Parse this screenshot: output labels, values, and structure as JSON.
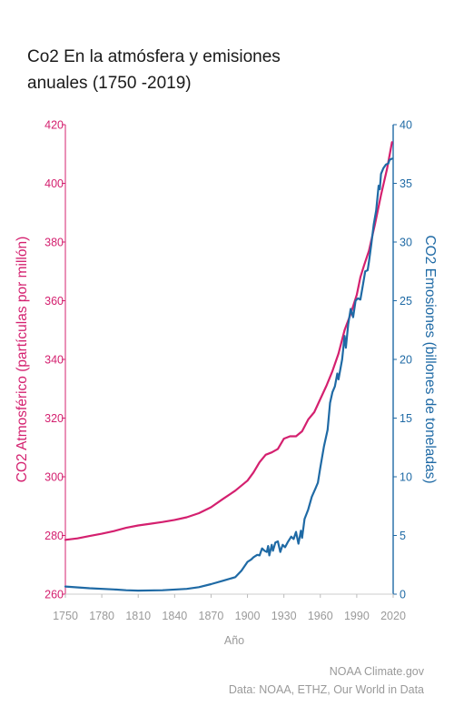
{
  "page": {
    "title_line1": "Co2 En la atmósfera y emisiones",
    "title_line2": "anuales (1750 -2019)",
    "footer_credit": "NOAA Climate.gov",
    "footer_source": "Data: NOAA, ETHZ, Our World in Data"
  },
  "chart_data": {
    "type": "line",
    "xlabel": "Año",
    "xlim": [
      1750,
      2020
    ],
    "x_ticks": [
      1750,
      1780,
      1810,
      1840,
      1870,
      1900,
      1930,
      1960,
      1990,
      2020
    ],
    "y_left": {
      "label": "CO2 Atmosférico (partículas por millón)",
      "lim": [
        260,
        420
      ],
      "ticks": [
        260,
        280,
        300,
        320,
        340,
        360,
        380,
        400,
        420
      ],
      "color": "#d4206f"
    },
    "y_right": {
      "label": "CO2 Emosiones (billones de toneladas)",
      "lim": [
        0,
        40
      ],
      "ticks": [
        0,
        5,
        10,
        15,
        20,
        25,
        30,
        35,
        40
      ],
      "color": "#1f6aa5"
    },
    "series": [
      {
        "axis": "left",
        "color": "#d4206f",
        "points": [
          [
            1750,
            278.5
          ],
          [
            1760,
            279.0
          ],
          [
            1770,
            279.8
          ],
          [
            1780,
            280.6
          ],
          [
            1790,
            281.5
          ],
          [
            1800,
            282.6
          ],
          [
            1810,
            283.4
          ],
          [
            1820,
            284.0
          ],
          [
            1830,
            284.6
          ],
          [
            1840,
            285.3
          ],
          [
            1850,
            286.2
          ],
          [
            1860,
            287.6
          ],
          [
            1870,
            289.6
          ],
          [
            1880,
            292.5
          ],
          [
            1890,
            295.3
          ],
          [
            1900,
            298.7
          ],
          [
            1905,
            301.5
          ],
          [
            1910,
            305.0
          ],
          [
            1915,
            307.5
          ],
          [
            1920,
            308.3
          ],
          [
            1925,
            309.5
          ],
          [
            1930,
            313.0
          ],
          [
            1935,
            313.8
          ],
          [
            1940,
            313.8
          ],
          [
            1945,
            315.5
          ],
          [
            1950,
            319.5
          ],
          [
            1955,
            322.0
          ],
          [
            1960,
            326.5
          ],
          [
            1965,
            331.0
          ],
          [
            1970,
            336.0
          ],
          [
            1975,
            342.0
          ],
          [
            1980,
            350.0
          ],
          [
            1985,
            355.5
          ],
          [
            1990,
            362.0
          ],
          [
            1993,
            368.0
          ],
          [
            1996,
            372.0
          ],
          [
            2000,
            377.0
          ],
          [
            2005,
            386.0
          ],
          [
            2010,
            396.0
          ],
          [
            2015,
            405.0
          ],
          [
            2019,
            414.0
          ]
        ]
      },
      {
        "axis": "right",
        "color": "#1f6aa5",
        "points": [
          [
            1750,
            0.65
          ],
          [
            1770,
            0.5
          ],
          [
            1790,
            0.4
          ],
          [
            1800,
            0.33
          ],
          [
            1810,
            0.3
          ],
          [
            1830,
            0.33
          ],
          [
            1850,
            0.45
          ],
          [
            1860,
            0.6
          ],
          [
            1870,
            0.85
          ],
          [
            1880,
            1.15
          ],
          [
            1890,
            1.45
          ],
          [
            1895,
            2.0
          ],
          [
            1900,
            2.75
          ],
          [
            1903,
            2.95
          ],
          [
            1905,
            3.15
          ],
          [
            1908,
            3.35
          ],
          [
            1910,
            3.3
          ],
          [
            1912,
            3.9
          ],
          [
            1914,
            3.7
          ],
          [
            1916,
            3.6
          ],
          [
            1917,
            4.1
          ],
          [
            1918,
            3.3
          ],
          [
            1920,
            4.2
          ],
          [
            1921,
            3.7
          ],
          [
            1923,
            4.4
          ],
          [
            1925,
            4.5
          ],
          [
            1927,
            3.6
          ],
          [
            1929,
            4.2
          ],
          [
            1931,
            4.0
          ],
          [
            1933,
            4.4
          ],
          [
            1936,
            4.9
          ],
          [
            1938,
            4.7
          ],
          [
            1940,
            5.3
          ],
          [
            1942,
            4.3
          ],
          [
            1944,
            5.4
          ],
          [
            1945,
            4.8
          ],
          [
            1947,
            6.4
          ],
          [
            1950,
            7.2
          ],
          [
            1953,
            8.3
          ],
          [
            1956,
            9.0
          ],
          [
            1958,
            9.5
          ],
          [
            1960,
            10.8
          ],
          [
            1963,
            12.6
          ],
          [
            1966,
            14.0
          ],
          [
            1968,
            16.3
          ],
          [
            1970,
            17.2
          ],
          [
            1972,
            17.7
          ],
          [
            1974,
            18.8
          ],
          [
            1975,
            18.3
          ],
          [
            1978,
            20.0
          ],
          [
            1980,
            22.0
          ],
          [
            1981,
            21.0
          ],
          [
            1983,
            23.0
          ],
          [
            1985,
            24.3
          ],
          [
            1987,
            23.6
          ],
          [
            1989,
            25.0
          ],
          [
            1991,
            25.2
          ],
          [
            1993,
            25.1
          ],
          [
            1995,
            26.3
          ],
          [
            1997,
            27.5
          ],
          [
            1999,
            27.6
          ],
          [
            2000,
            28.3
          ],
          [
            2002,
            29.8
          ],
          [
            2004,
            31.5
          ],
          [
            2006,
            32.7
          ],
          [
            2008,
            34.8
          ],
          [
            2009,
            34.5
          ],
          [
            2010,
            35.8
          ],
          [
            2012,
            36.3
          ],
          [
            2014,
            36.6
          ],
          [
            2016,
            36.7
          ],
          [
            2017,
            37.0
          ],
          [
            2019,
            37.1
          ]
        ]
      }
    ]
  }
}
